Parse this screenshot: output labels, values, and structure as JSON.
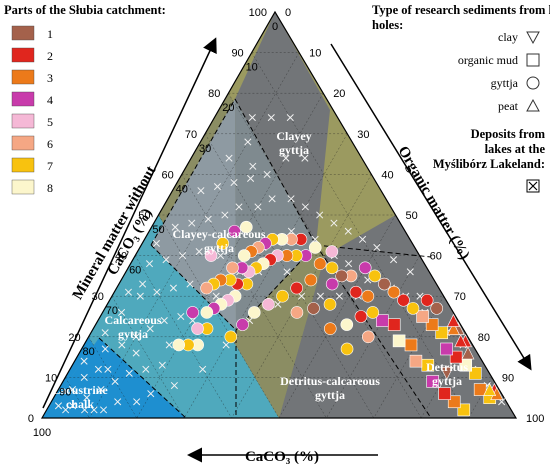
{
  "chart_data": {
    "type": "scatter",
    "subtype": "ternary",
    "axes": {
      "bottom": {
        "label": "CaCO₃ (%)",
        "ticks": [
          "100",
          "90",
          "80",
          "70",
          "60",
          "50",
          "40",
          "30",
          "20",
          "10",
          "0"
        ]
      },
      "left": {
        "label": "Mineral matter without CaCO₃ (%)",
        "ticks": [
          "0",
          "10",
          "20",
          "30",
          "40",
          "50",
          "60",
          "70",
          "80",
          "90",
          "100"
        ]
      },
      "right": {
        "label": "Organic matter (%)",
        "ticks": [
          "0",
          "10",
          "20",
          "30",
          "40",
          "50",
          "60",
          "70",
          "80",
          "90",
          "100"
        ]
      }
    },
    "zones": [
      {
        "name": "Lacustrine chalk",
        "color": "#1E8FD0"
      },
      {
        "name": "Calcareous gyttja",
        "color": "#4FA9BD"
      },
      {
        "name": "Clayey-calcareous gyttja",
        "color": "#8A979E"
      },
      {
        "name": "Clayey gyttja",
        "color": "#727578"
      },
      {
        "name": "Detritus-calcareous gyttja",
        "color": "#8B8D63"
      },
      {
        "name": "Detritus gyttja",
        "color": "#9B9A60"
      }
    ],
    "legend_parts_title": "Parts of the Słubia catchment:",
    "parts": [
      {
        "label": "1",
        "color": "#A4614B"
      },
      {
        "label": "2",
        "color": "#E0261E"
      },
      {
        "label": "3",
        "color": "#EC7A1A"
      },
      {
        "label": "4",
        "color": "#C83BAB"
      },
      {
        "label": "5",
        "color": "#F5B8D6"
      },
      {
        "label": "6",
        "color": "#F5A784"
      },
      {
        "label": "7",
        "color": "#F8C20F"
      },
      {
        "label": "8",
        "color": "#FCF6CC"
      }
    ],
    "legend_sediment_title": "Type of research sediments from kettle holes:",
    "sediment_types": [
      {
        "label": "clay",
        "marker": "triangle-down"
      },
      {
        "label": "organic mud",
        "marker": "square"
      },
      {
        "label": "gyttja",
        "marker": "circle"
      },
      {
        "label": "peat",
        "marker": "triangle-up"
      }
    ],
    "deposits_label": "Deposits from lakes at the Myślibórz Lakeland:",
    "points_kettle": [
      {
        "c": 10,
        "o": 88,
        "g": "square",
        "p": 7
      },
      {
        "c": 11,
        "o": 85,
        "g": "square",
        "p": 3
      },
      {
        "c": 12,
        "o": 82,
        "g": "square",
        "p": 2
      },
      {
        "c": 9,
        "o": 80,
        "g": "triangle-down",
        "p": 1
      },
      {
        "c": 13,
        "o": 78,
        "g": "square",
        "p": 4
      },
      {
        "c": 12,
        "o": 75,
        "g": "square",
        "p": 7
      },
      {
        "c": 14,
        "o": 72,
        "g": "square",
        "p": 6
      },
      {
        "c": 13,
        "o": 69,
        "g": "square",
        "p": 3
      },
      {
        "c": 15,
        "o": 66,
        "g": "square",
        "p": 8
      },
      {
        "c": 14,
        "o": 63,
        "g": "square",
        "p": 2
      },
      {
        "c": 16,
        "o": 60,
        "g": "square",
        "p": 4
      },
      {
        "c": 17,
        "o": 57,
        "g": "circle",
        "p": 7
      },
      {
        "c": 16,
        "o": 54,
        "g": "circle",
        "p": 3
      },
      {
        "c": 18,
        "o": 51,
        "g": "circle",
        "p": 2
      },
      {
        "c": 17,
        "o": 48,
        "g": "circle",
        "p": 6
      },
      {
        "c": 19,
        "o": 46,
        "g": "circle",
        "p": 1
      },
      {
        "c": 20,
        "o": 43,
        "g": "circle",
        "p": 7
      },
      {
        "c": 18,
        "o": 41,
        "g": "circle",
        "p": 5
      },
      {
        "c": 22,
        "o": 40,
        "g": "circle",
        "p": 3
      },
      {
        "c": 21,
        "o": 37,
        "g": "circle",
        "p": 8
      },
      {
        "c": 24,
        "o": 36,
        "g": "circle",
        "p": 4
      },
      {
        "c": 23,
        "o": 33,
        "g": "circle",
        "p": 2
      },
      {
        "c": 26,
        "o": 34,
        "g": "circle",
        "p": 7
      },
      {
        "c": 25,
        "o": 31,
        "g": "circle",
        "p": 6
      },
      {
        "c": 28,
        "o": 32,
        "g": "circle",
        "p": 3
      },
      {
        "c": 27,
        "o": 29,
        "g": "circle",
        "p": 8
      },
      {
        "c": 30,
        "o": 30,
        "g": "circle",
        "p": 5
      },
      {
        "c": 29,
        "o": 27,
        "g": "circle",
        "p": 7
      },
      {
        "c": 32,
        "o": 29,
        "g": "circle",
        "p": 2
      },
      {
        "c": 31,
        "o": 26,
        "g": "circle",
        "p": 4
      },
      {
        "c": 34,
        "o": 28,
        "g": "circle",
        "p": 8
      },
      {
        "c": 33,
        "o": 25,
        "g": "circle",
        "p": 6
      },
      {
        "c": 36,
        "o": 27,
        "g": "circle",
        "p": 7
      },
      {
        "c": 35,
        "o": 24,
        "g": "circle",
        "p": 3
      },
      {
        "c": 38,
        "o": 26,
        "g": "circle",
        "p": 5
      },
      {
        "c": 37,
        "o": 23,
        "g": "circle",
        "p": 8
      },
      {
        "c": 40,
        "o": 27,
        "g": "circle",
        "p": 7
      },
      {
        "c": 39,
        "o": 24,
        "g": "circle",
        "p": 4
      },
      {
        "c": 42,
        "o": 25,
        "g": "circle",
        "p": 2
      },
      {
        "c": 41,
        "o": 22,
        "g": "circle",
        "p": 6
      },
      {
        "c": 44,
        "o": 26,
        "g": "circle",
        "p": 8
      },
      {
        "c": 43,
        "o": 23,
        "g": "circle",
        "p": 7
      },
      {
        "c": 46,
        "o": 25,
        "g": "circle",
        "p": 5
      },
      {
        "c": 45,
        "o": 21,
        "g": "circle",
        "p": 3
      },
      {
        "c": 48,
        "o": 24,
        "g": "circle",
        "p": 8
      },
      {
        "c": 47,
        "o": 20,
        "g": "circle",
        "p": 7
      },
      {
        "c": 50,
        "o": 23,
        "g": "circle",
        "p": 4
      },
      {
        "c": 49,
        "o": 19,
        "g": "circle",
        "p": 6
      },
      {
        "c": 52,
        "o": 22,
        "g": "circle",
        "p": 8
      },
      {
        "c": 54,
        "o": 24,
        "g": "circle",
        "p": 7
      },
      {
        "c": 56,
        "o": 22,
        "g": "circle",
        "p": 5
      },
      {
        "c": 58,
        "o": 24,
        "g": "circle",
        "p": 8
      },
      {
        "c": 55,
        "o": 19,
        "g": "circle",
        "p": 4
      },
      {
        "c": 60,
        "o": 22,
        "g": "circle",
        "p": 7
      },
      {
        "c": 62,
        "o": 20,
        "g": "circle",
        "p": 8
      },
      {
        "c": 26,
        "o": 40,
        "g": "circle",
        "p": 3
      },
      {
        "c": 30,
        "o": 38,
        "g": "circle",
        "p": 2
      },
      {
        "c": 34,
        "o": 36,
        "g": "circle",
        "p": 7
      },
      {
        "c": 38,
        "o": 34,
        "g": "circle",
        "p": 5
      },
      {
        "c": 42,
        "o": 32,
        "g": "circle",
        "p": 8
      },
      {
        "c": 46,
        "o": 31,
        "g": "circle",
        "p": 4
      },
      {
        "c": 50,
        "o": 30,
        "g": "circle",
        "p": 7
      },
      {
        "c": 33,
        "o": 41,
        "g": "circle",
        "p": 6
      },
      {
        "c": 29,
        "o": 44,
        "g": "circle",
        "p": 1
      },
      {
        "c": 25,
        "o": 47,
        "g": "circle",
        "p": 7
      },
      {
        "c": 22,
        "o": 45,
        "g": "circle",
        "p": 4
      },
      {
        "c": 28,
        "o": 50,
        "g": "circle",
        "p": 3
      },
      {
        "c": 24,
        "o": 53,
        "g": "circle",
        "p": 8
      },
      {
        "c": 27,
        "o": 56,
        "g": "circle",
        "p": 7
      },
      {
        "c": 20,
        "o": 55,
        "g": "circle",
        "p": 2
      },
      {
        "c": 21,
        "o": 59,
        "g": "circle",
        "p": 6
      },
      {
        "c": 36,
        "o": 18,
        "g": "circle",
        "p": 4
      },
      {
        "c": 40,
        "o": 17,
        "g": "circle",
        "p": 7
      },
      {
        "c": 44,
        "o": 16,
        "g": "circle",
        "p": 5
      },
      {
        "c": 33,
        "o": 20,
        "g": "circle",
        "p": 8
      },
      {
        "c": 3,
        "o": 92,
        "g": "square",
        "p": 7
      },
      {
        "c": 4,
        "o": 89,
        "g": "square",
        "p": 3
      },
      {
        "c": 3,
        "o": 86,
        "g": "square",
        "p": 7
      },
      {
        "c": 4,
        "o": 83,
        "g": "square",
        "p": 8
      },
      {
        "c": 5,
        "o": 80,
        "g": "square",
        "p": 2
      },
      {
        "c": 6,
        "o": 77,
        "g": "square",
        "p": 4
      },
      {
        "c": 5,
        "o": 74,
        "g": "square",
        "p": 7
      },
      {
        "c": 6,
        "o": 71,
        "g": "square",
        "p": 3
      },
      {
        "c": 7,
        "o": 68,
        "g": "square",
        "p": 6
      },
      {
        "c": 8,
        "o": 65,
        "g": "circle",
        "p": 7
      },
      {
        "c": 9,
        "o": 62,
        "g": "circle",
        "p": 2
      },
      {
        "c": 10,
        "o": 59,
        "g": "circle",
        "p": 3
      },
      {
        "c": 11,
        "o": 56,
        "g": "circle",
        "p": 1
      },
      {
        "c": 12,
        "o": 53,
        "g": "circle",
        "p": 7
      },
      {
        "c": 13,
        "o": 50,
        "g": "circle",
        "p": 4
      },
      {
        "c": 2,
        "o": 82,
        "g": "triangle-up",
        "p": 1
      },
      {
        "c": 1,
        "o": 80,
        "g": "triangle-up",
        "p": 2
      },
      {
        "c": 2,
        "o": 79,
        "g": "triangle-up",
        "p": 2
      },
      {
        "c": 1,
        "o": 77,
        "g": "triangle-up",
        "p": 1
      },
      {
        "c": 2,
        "o": 76,
        "g": "triangle-up",
        "p": 3
      },
      {
        "c": 1,
        "o": 75,
        "g": "triangle-up",
        "p": 2
      },
      {
        "c": 1,
        "o": 92,
        "g": "triangle-up",
        "p": 2
      },
      {
        "c": 1,
        "o": 93,
        "g": "triangle-up",
        "p": 3
      },
      {
        "c": 2,
        "o": 91,
        "g": "triangle-up",
        "p": 7
      },
      {
        "c": 3,
        "o": 70,
        "g": "circle",
        "p": 1
      },
      {
        "c": 4,
        "o": 67,
        "g": "circle",
        "p": 2
      }
    ],
    "points_lakes": [
      {
        "c": 95,
        "o": 2
      },
      {
        "c": 92,
        "o": 5
      },
      {
        "c": 90,
        "o": 3
      },
      {
        "c": 88,
        "o": 7
      },
      {
        "c": 86,
        "o": 4
      },
      {
        "c": 84,
        "o": 9
      },
      {
        "c": 82,
        "o": 6
      },
      {
        "c": 80,
        "o": 11
      },
      {
        "c": 78,
        "o": 5
      },
      {
        "c": 76,
        "o": 13
      },
      {
        "c": 74,
        "o": 8
      },
      {
        "c": 72,
        "o": 16
      },
      {
        "c": 70,
        "o": 10
      },
      {
        "c": 68,
        "o": 19
      },
      {
        "c": 66,
        "o": 12
      },
      {
        "c": 64,
        "o": 6
      },
      {
        "c": 62,
        "o": 14
      },
      {
        "c": 60,
        "o": 9
      },
      {
        "c": 58,
        "o": 17
      },
      {
        "c": 56,
        "o": 12
      },
      {
        "c": 54,
        "o": 7
      },
      {
        "c": 52,
        "o": 15
      },
      {
        "c": 50,
        "o": 10
      },
      {
        "c": 48,
        "o": 5
      },
      {
        "c": 46,
        "o": 13
      },
      {
        "c": 44,
        "o": 8
      },
      {
        "c": 42,
        "o": 18
      },
      {
        "c": 40,
        "o": 11
      },
      {
        "c": 38,
        "o": 6
      },
      {
        "c": 36,
        "o": 14
      },
      {
        "c": 34,
        "o": 9
      },
      {
        "c": 32,
        "o": 16
      },
      {
        "c": 30,
        "o": 12
      },
      {
        "c": 28,
        "o": 20
      },
      {
        "c": 26,
        "o": 15
      },
      {
        "c": 24,
        "o": 22
      },
      {
        "c": 22,
        "o": 18
      },
      {
        "c": 20,
        "o": 26
      },
      {
        "c": 18,
        "o": 30
      },
      {
        "c": 16,
        "o": 34
      },
      {
        "c": 14,
        "o": 38
      },
      {
        "c": 12,
        "o": 42
      },
      {
        "c": 10,
        "o": 46
      },
      {
        "c": 8,
        "o": 50
      },
      {
        "c": 6,
        "o": 55
      },
      {
        "c": 4,
        "o": 60
      },
      {
        "c": 5,
        "o": 65
      },
      {
        "c": 3,
        "o": 70
      },
      {
        "c": 4,
        "o": 75
      },
      {
        "c": 2,
        "o": 80
      },
      {
        "c": 3,
        "o": 85
      },
      {
        "c": 2,
        "o": 90
      },
      {
        "c": 1,
        "o": 95
      },
      {
        "c": 70,
        "o": 4
      },
      {
        "c": 66,
        "o": 3
      },
      {
        "c": 62,
        "o": 5
      },
      {
        "c": 58,
        "o": 4
      },
      {
        "c": 54,
        "o": 3
      },
      {
        "c": 76,
        "o": 3
      },
      {
        "c": 84,
        "o": 2
      },
      {
        "c": 80,
        "o": 8
      },
      {
        "c": 72,
        "o": 12
      },
      {
        "c": 64,
        "o": 18
      },
      {
        "c": 56,
        "o": 20
      },
      {
        "c": 48,
        "o": 22
      },
      {
        "c": 40,
        "o": 24
      },
      {
        "c": 32,
        "o": 26
      },
      {
        "c": 24,
        "o": 30
      },
      {
        "c": 20,
        "o": 36
      },
      {
        "c": 18,
        "o": 42
      },
      {
        "c": 16,
        "o": 46
      },
      {
        "c": 14,
        "o": 52
      },
      {
        "c": 10,
        "o": 58
      },
      {
        "c": 8,
        "o": 62
      },
      {
        "c": 6,
        "o": 68
      },
      {
        "c": 22,
        "o": 10
      },
      {
        "c": 18,
        "o": 8
      },
      {
        "c": 14,
        "o": 12
      },
      {
        "c": 10,
        "o": 16
      },
      {
        "c": 12,
        "o": 24
      },
      {
        "c": 16,
        "o": 20
      },
      {
        "c": 24,
        "o": 14
      },
      {
        "c": 28,
        "o": 8
      },
      {
        "c": 74,
        "o": 20
      },
      {
        "c": 68,
        "o": 24
      },
      {
        "c": 60,
        "o": 28
      },
      {
        "c": 52,
        "o": 30
      },
      {
        "c": 44,
        "o": 32
      },
      {
        "c": 36,
        "o": 36
      },
      {
        "c": 30,
        "o": 40
      },
      {
        "c": 26,
        "o": 44
      },
      {
        "c": 22,
        "o": 48
      },
      {
        "c": 18,
        "o": 52
      },
      {
        "c": 30,
        "o": 34
      },
      {
        "c": 36,
        "o": 28
      },
      {
        "c": 88,
        "o": 10
      },
      {
        "c": 82,
        "o": 14
      },
      {
        "c": 78,
        "o": 18
      },
      {
        "c": 86,
        "o": 12
      },
      {
        "c": 90,
        "o": 8
      },
      {
        "c": 94,
        "o": 4
      }
    ]
  }
}
